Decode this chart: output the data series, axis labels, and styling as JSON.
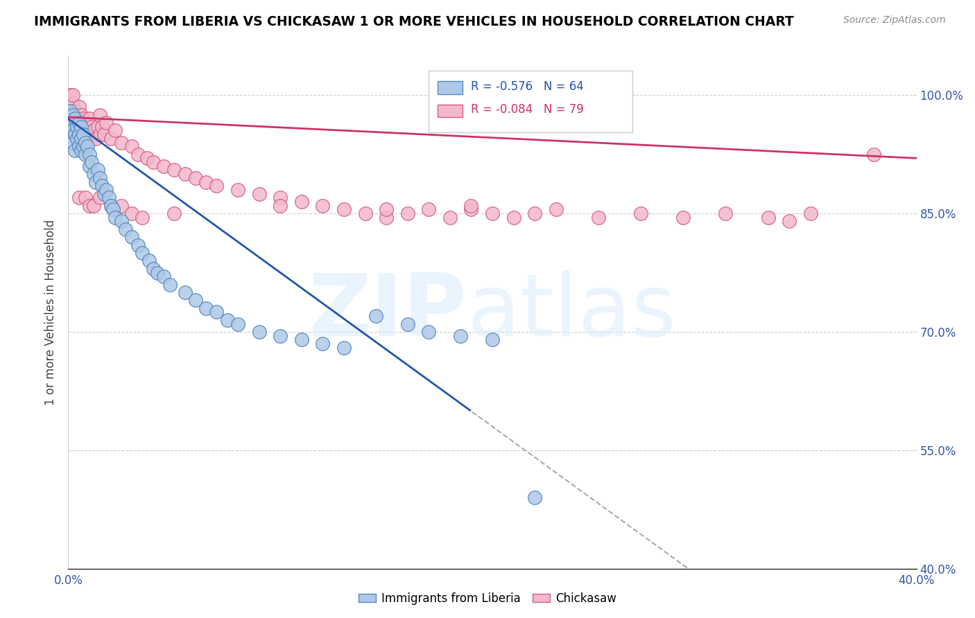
{
  "title": "IMMIGRANTS FROM LIBERIA VS CHICKASAW 1 OR MORE VEHICLES IN HOUSEHOLD CORRELATION CHART",
  "source": "Source: ZipAtlas.com",
  "ylabel": "1 or more Vehicles in Household",
  "xlim": [
    0.0,
    0.4
  ],
  "ylim": [
    0.4,
    1.05
  ],
  "R_blue": -0.576,
  "N_blue": 64,
  "R_pink": -0.084,
  "N_pink": 79,
  "blue_color": "#aec8e8",
  "pink_color": "#f4b8cc",
  "blue_edge_color": "#5588bb",
  "pink_edge_color": "#d06080",
  "blue_line_color": "#2255aa",
  "pink_line_color": "#cc3366",
  "legend_blue_label": "Immigrants from Liberia",
  "legend_pink_label": "Chickasaw",
  "blue_x": [
    0.001,
    0.001,
    0.001,
    0.002,
    0.002,
    0.002,
    0.002,
    0.003,
    0.003,
    0.003,
    0.004,
    0.004,
    0.005,
    0.005,
    0.005,
    0.006,
    0.006,
    0.006,
    0.007,
    0.007,
    0.008,
    0.008,
    0.009,
    0.01,
    0.01,
    0.011,
    0.012,
    0.013,
    0.014,
    0.015,
    0.016,
    0.017,
    0.018,
    0.019,
    0.02,
    0.021,
    0.022,
    0.025,
    0.027,
    0.03,
    0.033,
    0.035,
    0.038,
    0.04,
    0.042,
    0.045,
    0.048,
    0.055,
    0.06,
    0.065,
    0.07,
    0.075,
    0.08,
    0.09,
    0.1,
    0.11,
    0.12,
    0.13,
    0.145,
    0.16,
    0.17,
    0.185,
    0.2,
    0.22
  ],
  "blue_y": [
    0.97,
    0.98,
    0.96,
    0.975,
    0.965,
    0.955,
    0.94,
    0.97,
    0.95,
    0.93,
    0.96,
    0.945,
    0.965,
    0.95,
    0.935,
    0.96,
    0.945,
    0.93,
    0.95,
    0.935,
    0.94,
    0.925,
    0.935,
    0.925,
    0.91,
    0.915,
    0.9,
    0.89,
    0.905,
    0.895,
    0.885,
    0.875,
    0.88,
    0.87,
    0.86,
    0.855,
    0.845,
    0.84,
    0.83,
    0.82,
    0.81,
    0.8,
    0.79,
    0.78,
    0.775,
    0.77,
    0.76,
    0.75,
    0.74,
    0.73,
    0.725,
    0.715,
    0.71,
    0.7,
    0.695,
    0.69,
    0.685,
    0.68,
    0.72,
    0.71,
    0.7,
    0.695,
    0.69,
    0.49
  ],
  "pink_x": [
    0.001,
    0.001,
    0.002,
    0.002,
    0.002,
    0.003,
    0.003,
    0.004,
    0.004,
    0.005,
    0.005,
    0.006,
    0.006,
    0.007,
    0.007,
    0.008,
    0.008,
    0.009,
    0.01,
    0.01,
    0.011,
    0.012,
    0.013,
    0.014,
    0.015,
    0.015,
    0.016,
    0.017,
    0.018,
    0.02,
    0.022,
    0.025,
    0.03,
    0.033,
    0.037,
    0.04,
    0.045,
    0.05,
    0.055,
    0.06,
    0.065,
    0.07,
    0.08,
    0.09,
    0.1,
    0.11,
    0.12,
    0.13,
    0.14,
    0.15,
    0.16,
    0.17,
    0.18,
    0.19,
    0.2,
    0.21,
    0.22,
    0.23,
    0.25,
    0.27,
    0.29,
    0.31,
    0.33,
    0.35,
    0.005,
    0.008,
    0.01,
    0.012,
    0.015,
    0.02,
    0.025,
    0.03,
    0.035,
    0.05,
    0.1,
    0.15,
    0.19,
    0.34,
    0.38
  ],
  "pink_y": [
    0.98,
    1.0,
    0.97,
    0.99,
    1.0,
    0.98,
    0.96,
    0.975,
    0.955,
    0.985,
    0.965,
    0.975,
    0.95,
    0.97,
    0.945,
    0.965,
    0.945,
    0.96,
    0.97,
    0.95,
    0.96,
    0.955,
    0.945,
    0.96,
    0.975,
    0.95,
    0.96,
    0.95,
    0.965,
    0.945,
    0.955,
    0.94,
    0.935,
    0.925,
    0.92,
    0.915,
    0.91,
    0.905,
    0.9,
    0.895,
    0.89,
    0.885,
    0.88,
    0.875,
    0.87,
    0.865,
    0.86,
    0.855,
    0.85,
    0.845,
    0.85,
    0.855,
    0.845,
    0.855,
    0.85,
    0.845,
    0.85,
    0.855,
    0.845,
    0.85,
    0.845,
    0.85,
    0.845,
    0.85,
    0.87,
    0.87,
    0.86,
    0.86,
    0.87,
    0.86,
    0.86,
    0.85,
    0.845,
    0.85,
    0.86,
    0.855,
    0.86,
    0.84,
    0.925
  ]
}
